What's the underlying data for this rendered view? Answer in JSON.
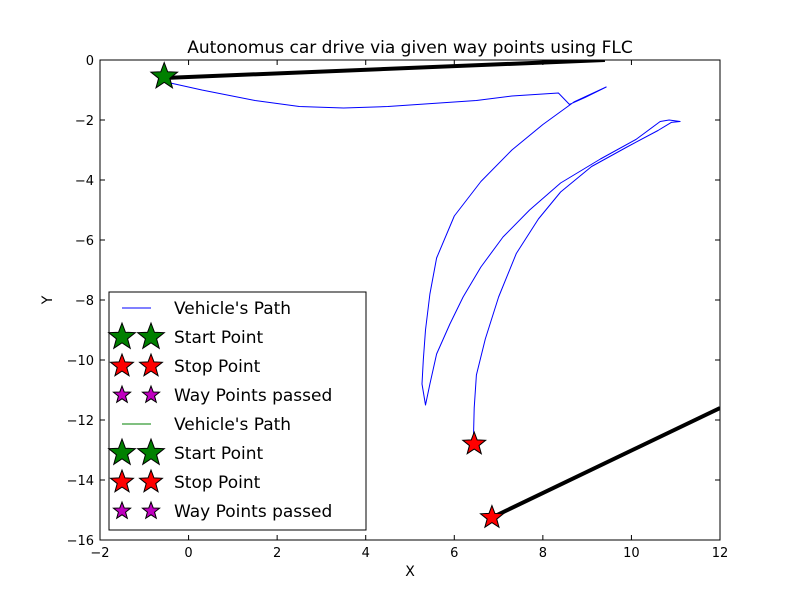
{
  "chart_data": {
    "type": "line",
    "title": "Autonomus car drive via given way points using FLC",
    "xlabel": "X",
    "ylabel": "Y",
    "xlim": [
      -2,
      12
    ],
    "ylim": [
      -16,
      0
    ],
    "xticks": [
      -2,
      0,
      2,
      4,
      6,
      8,
      10,
      12
    ],
    "yticks": [
      0,
      -2,
      -4,
      -6,
      -8,
      -10,
      -12,
      -14,
      -16
    ],
    "xtick_labels": [
      "−2",
      "0",
      "2",
      "4",
      "6",
      "8",
      "10",
      "12"
    ],
    "ytick_labels": [
      "0",
      "−2",
      "−4",
      "−6",
      "−8",
      "−10",
      "−12",
      "−14",
      "−16"
    ],
    "grid": false,
    "legend_position": "lower-left",
    "legend": [
      {
        "label": "Vehicle's Path",
        "kind": "line",
        "color": "#0000ff"
      },
      {
        "label": "Start Point",
        "kind": "star",
        "color": "#008000",
        "size": "large"
      },
      {
        "label": "Stop Point",
        "kind": "star",
        "color": "#ff0000",
        "size": "medium"
      },
      {
        "label": "Way Points passed",
        "kind": "star",
        "color": "#bf00bf",
        "size": "small"
      },
      {
        "label": "Vehicle's Path",
        "kind": "line",
        "color": "#008000"
      },
      {
        "label": "Start Point",
        "kind": "star",
        "color": "#008000",
        "size": "large"
      },
      {
        "label": "Stop Point",
        "kind": "star",
        "color": "#ff0000",
        "size": "medium"
      },
      {
        "label": "Way Points passed",
        "kind": "star",
        "color": "#bf00bf",
        "size": "small"
      }
    ],
    "series": [
      {
        "name": "Vehicle's Path",
        "color": "#0000ff",
        "points": [
          [
            -0.55,
            -0.72
          ],
          [
            0.3,
            -1.0
          ],
          [
            1.5,
            -1.35
          ],
          [
            2.5,
            -1.55
          ],
          [
            3.5,
            -1.6
          ],
          [
            4.5,
            -1.55
          ],
          [
            5.5,
            -1.45
          ],
          [
            6.5,
            -1.35
          ],
          [
            7.3,
            -1.2
          ],
          [
            8.35,
            -1.1
          ],
          [
            8.6,
            -1.48
          ],
          [
            8.95,
            -1.25
          ],
          [
            9.43,
            -0.9
          ],
          [
            8.7,
            -1.4
          ],
          [
            8.0,
            -2.15
          ],
          [
            7.3,
            -3.0
          ],
          [
            6.6,
            -4.05
          ],
          [
            6.0,
            -5.2
          ],
          [
            5.6,
            -6.6
          ],
          [
            5.45,
            -7.8
          ],
          [
            5.35,
            -9.0
          ],
          [
            5.3,
            -10.0
          ],
          [
            5.27,
            -10.8
          ],
          [
            5.35,
            -11.5
          ],
          [
            5.45,
            -10.8
          ],
          [
            5.6,
            -9.8
          ],
          [
            5.9,
            -8.8
          ],
          [
            6.2,
            -7.9
          ],
          [
            6.6,
            -6.9
          ],
          [
            7.1,
            -5.9
          ],
          [
            7.7,
            -5.0
          ],
          [
            8.4,
            -4.1
          ],
          [
            9.3,
            -3.3
          ],
          [
            10.1,
            -2.65
          ],
          [
            10.65,
            -2.05
          ],
          [
            10.85,
            -2.0
          ],
          [
            11.1,
            -2.05
          ],
          [
            10.9,
            -2.08
          ],
          [
            10.6,
            -2.35
          ],
          [
            9.9,
            -2.9
          ],
          [
            9.1,
            -3.55
          ],
          [
            8.4,
            -4.4
          ],
          [
            7.9,
            -5.3
          ],
          [
            7.4,
            -6.45
          ],
          [
            7.0,
            -7.9
          ],
          [
            6.7,
            -9.3
          ],
          [
            6.5,
            -10.5
          ],
          [
            6.45,
            -11.6
          ],
          [
            6.43,
            -12.8
          ]
        ]
      }
    ],
    "thick_lines": [
      {
        "color": "#000000",
        "points": [
          [
            -0.55,
            -0.6
          ],
          [
            9.4,
            0.0
          ]
        ]
      },
      {
        "color": "#000000",
        "points": [
          [
            6.85,
            -15.25
          ],
          [
            12.0,
            -11.6
          ]
        ]
      }
    ],
    "markers": [
      {
        "label": "Start Point",
        "color": "#008000",
        "size": "large",
        "x": -0.55,
        "y": -0.55
      },
      {
        "label": "Stop Point",
        "color": "#ff0000",
        "size": "medium",
        "x": 6.45,
        "y": -12.8
      },
      {
        "label": "Stop Point",
        "color": "#ff0000",
        "size": "medium",
        "x": 6.85,
        "y": -15.25
      }
    ]
  }
}
